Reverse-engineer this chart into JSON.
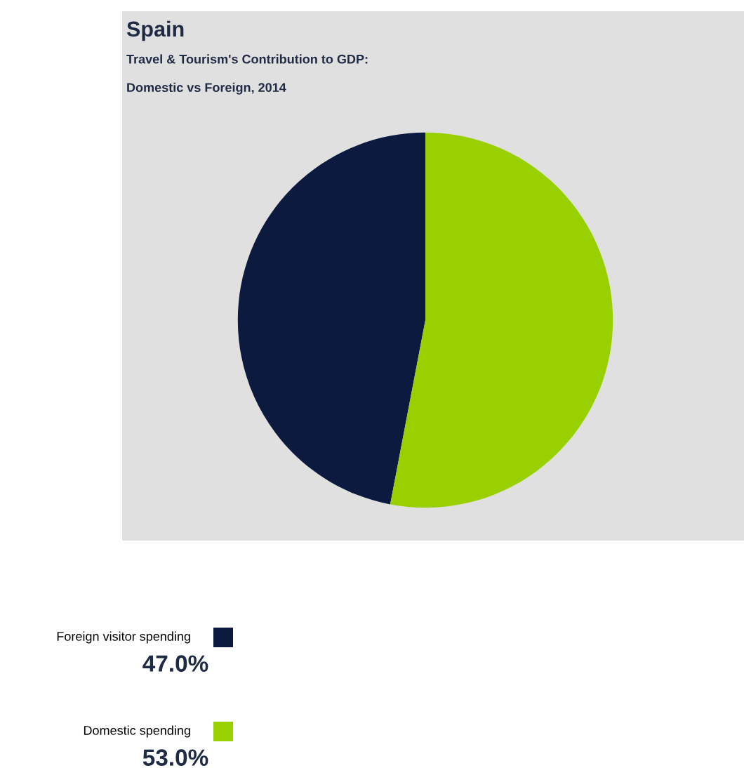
{
  "chart_data": {
    "type": "pie",
    "title": "Spain",
    "subtitle": "Travel & Tourism's Contribution to GDP:\nDomestic vs Foreign, 2014",
    "categories": [
      "Foreign visitor spending",
      "Domestic spending"
    ],
    "values": [
      47,
      53
    ],
    "colors": [
      "#0d1a3f",
      "#99d100"
    ],
    "value_labels": [
      "47.0%",
      "53.0%"
    ],
    "legend": "bottom left"
  }
}
